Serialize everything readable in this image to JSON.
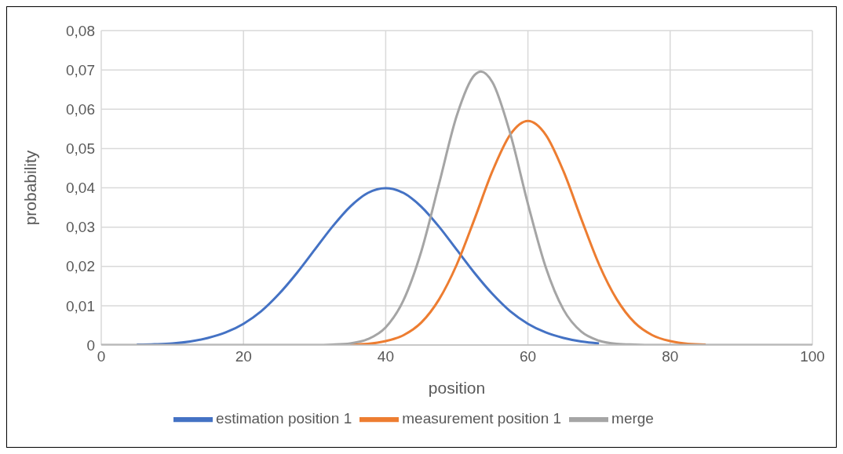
{
  "chart_data": {
    "type": "line",
    "xlabel": "position",
    "ylabel": "probability",
    "xlim": [
      0,
      100
    ],
    "xticks": [
      0,
      20,
      40,
      60,
      80,
      100
    ],
    "ylim": [
      0,
      0.08
    ],
    "yticks": [
      {
        "value": 0,
        "label": "0"
      },
      {
        "value": 0.01,
        "label": "0,01"
      },
      {
        "value": 0.02,
        "label": "0,02"
      },
      {
        "value": 0.03,
        "label": "0,03"
      },
      {
        "value": 0.04,
        "label": "0,04"
      },
      {
        "value": 0.05,
        "label": "0,05"
      },
      {
        "value": 0.06,
        "label": "0,06"
      },
      {
        "value": 0.07,
        "label": "0,07"
      },
      {
        "value": 0.08,
        "label": "0,08"
      }
    ],
    "grid": true,
    "legend": "bottom",
    "marker": "none",
    "line_style": "solid",
    "series": [
      {
        "name": "estimation position 1",
        "color": "#4472c4",
        "x": [
          5,
          7.5,
          10,
          12.5,
          15,
          17.5,
          20,
          22.5,
          25,
          27.5,
          30,
          32.5,
          35,
          37.5,
          40,
          42.5,
          45,
          47.5,
          50,
          52.5,
          55,
          57.5,
          60,
          62.5,
          65,
          67.5,
          70
        ],
        "values": [
          0.0001,
          0.0002,
          0.0004,
          0.0009,
          0.0018,
          0.0032,
          0.0054,
          0.0086,
          0.013,
          0.0183,
          0.0242,
          0.0301,
          0.0352,
          0.0387,
          0.0399,
          0.0387,
          0.0352,
          0.0301,
          0.0242,
          0.0183,
          0.013,
          0.0086,
          0.0054,
          0.0032,
          0.0018,
          0.0009,
          0.0004
        ]
      },
      {
        "name": "measurement position 1",
        "color": "#ed7d31",
        "x": [
          35,
          37.5,
          40,
          42.5,
          45,
          47.5,
          50,
          52.5,
          55,
          57.5,
          60,
          62.5,
          65,
          67.5,
          70,
          72.5,
          75,
          77.5,
          80,
          82.5,
          85
        ],
        "values": [
          0.0001,
          0.0003,
          0.001,
          0.0025,
          0.0057,
          0.0116,
          0.0205,
          0.0321,
          0.0442,
          0.0535,
          0.057,
          0.0535,
          0.0442,
          0.0321,
          0.0205,
          0.0116,
          0.0057,
          0.0025,
          0.001,
          0.0003,
          0.0001
        ]
      },
      {
        "name": "merge",
        "color": "#a5a5a5",
        "x": [
          0,
          10,
          20,
          30,
          32.5,
          35,
          37.5,
          40,
          42.5,
          45,
          47.5,
          50,
          52.5,
          53.4,
          55,
          57.5,
          60,
          62.5,
          65,
          67.5,
          70,
          72.5,
          75,
          77.5,
          80,
          90,
          100
        ],
        "values": [
          0,
          0,
          0,
          0,
          0.0001,
          0.0004,
          0.0015,
          0.0045,
          0.0114,
          0.0238,
          0.041,
          0.0584,
          0.0687,
          0.0696,
          0.0669,
          0.0539,
          0.0359,
          0.0198,
          0.009,
          0.0034,
          0.0011,
          0.0003,
          0.0001,
          0,
          0,
          0,
          0
        ]
      }
    ]
  }
}
